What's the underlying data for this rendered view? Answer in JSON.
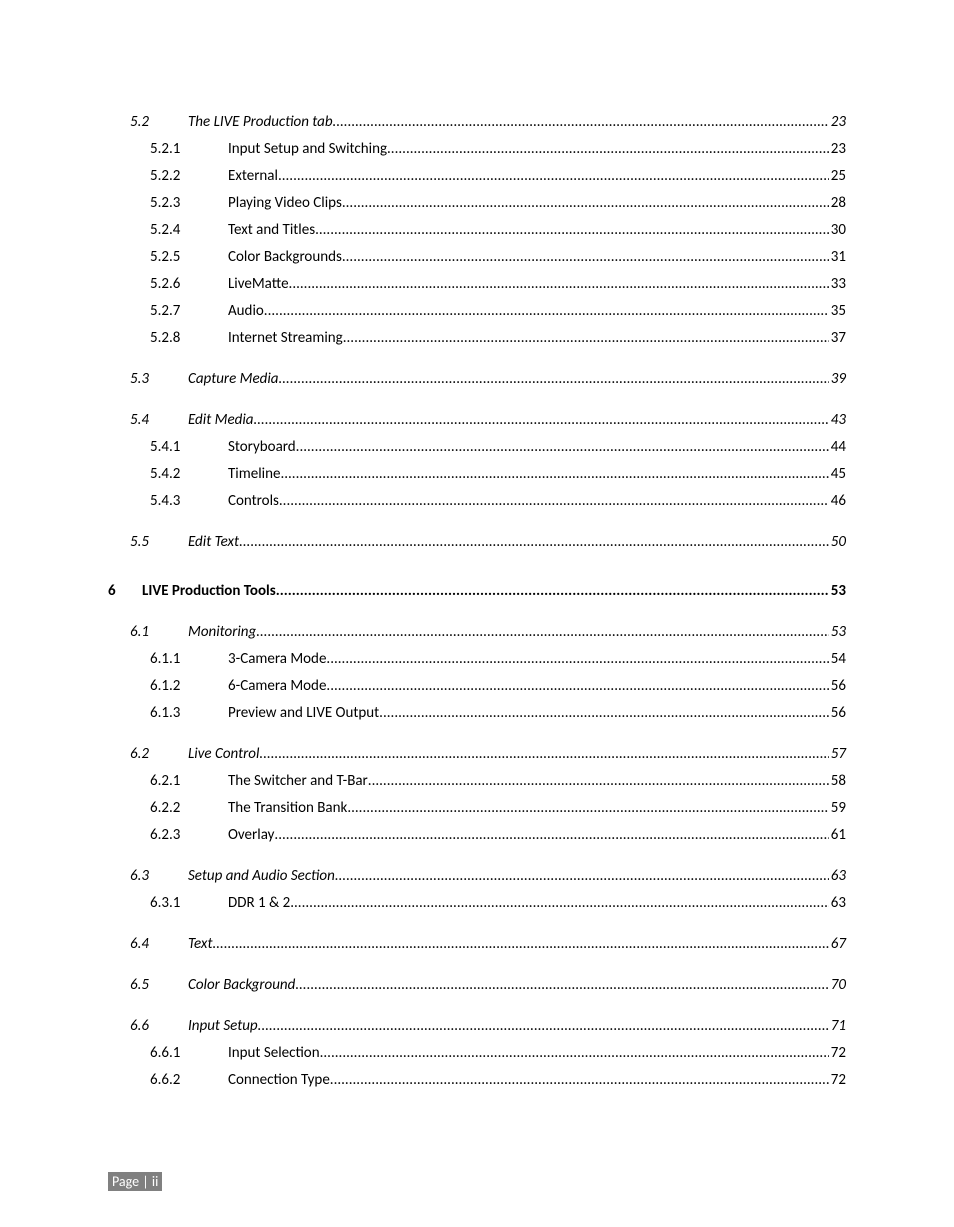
{
  "dot_char": ".",
  "footer": "Page | ii",
  "entries": [
    {
      "num": "5.2",
      "title": "The LIVE Production tab",
      "page": "23",
      "level": 1,
      "italic": true
    },
    {
      "num": "5.2.1",
      "title": "Input Setup and Switching",
      "page": "23",
      "level": 2,
      "italic": false
    },
    {
      "num": "5.2.2",
      "title": "External",
      "page": "25",
      "level": 2,
      "italic": false
    },
    {
      "num": "5.2.3",
      "title": "Playing Video Clips",
      "page": "28",
      "level": 2,
      "italic": false
    },
    {
      "num": "5.2.4",
      "title": "Text and Titles",
      "page": "30",
      "level": 2,
      "italic": false
    },
    {
      "num": "5.2.5",
      "title": "Color Backgrounds",
      "page": "31",
      "level": 2,
      "italic": false
    },
    {
      "num": "5.2.6",
      "title": "LiveMatte",
      "page": "33",
      "level": 2,
      "italic": false
    },
    {
      "num": "5.2.7",
      "title": "Audio",
      "page": "35",
      "level": 2,
      "italic": false
    },
    {
      "num": "5.2.8",
      "title": "Internet Streaming",
      "page": "37",
      "level": 2,
      "italic": false
    },
    {
      "gap": "small"
    },
    {
      "num": "5.3",
      "title": "Capture Media",
      "page": "39",
      "level": 1,
      "italic": true
    },
    {
      "gap": "small"
    },
    {
      "num": "5.4",
      "title": "Edit Media",
      "page": "43",
      "level": 1,
      "italic": true
    },
    {
      "num": "5.4.1",
      "title": "Storyboard",
      "page": "44",
      "level": 2,
      "italic": false
    },
    {
      "num": "5.4.2",
      "title": "Timeline",
      "page": "45",
      "level": 2,
      "italic": false
    },
    {
      "num": "5.4.3",
      "title": "Controls",
      "page": "46",
      "level": 2,
      "italic": false
    },
    {
      "gap": "small"
    },
    {
      "num": "5.5",
      "title": "Edit Text",
      "page": "50",
      "level": 1,
      "italic": true
    },
    {
      "gap": "big"
    },
    {
      "num": "6",
      "title": "LIVE Production Tools",
      "page": "53",
      "level": 0,
      "italic": false,
      "bold": true
    },
    {
      "gap": "small"
    },
    {
      "num": "6.1",
      "title": "Monitoring",
      "page": "53",
      "level": 1,
      "italic": true
    },
    {
      "num": "6.1.1",
      "title": "3-Camera Mode",
      "page": "54",
      "level": 2,
      "italic": false
    },
    {
      "num": "6.1.2",
      "title": "6-Camera Mode",
      "page": "56",
      "level": 2,
      "italic": false
    },
    {
      "num": "6.1.3",
      "title": "Preview and LIVE Output",
      "page": "56",
      "level": 2,
      "italic": false
    },
    {
      "gap": "small"
    },
    {
      "num": "6.2",
      "title": "Live Control",
      "page": "57",
      "level": 1,
      "italic": true
    },
    {
      "num": "6.2.1",
      "title": "The Switcher and T-Bar",
      "page": "58",
      "level": 2,
      "italic": false
    },
    {
      "num": "6.2.2",
      "title": "The Transition Bank",
      "page": "59",
      "level": 2,
      "italic": false
    },
    {
      "num": "6.2.3",
      "title": "Overlay",
      "page": "61",
      "level": 2,
      "italic": false
    },
    {
      "gap": "small"
    },
    {
      "num": "6.3",
      "title": "Setup and Audio Section",
      "page": "63",
      "level": 1,
      "italic": true
    },
    {
      "num": "6.3.1",
      "title": "DDR 1 & 2",
      "page": "63",
      "level": 2,
      "italic": false
    },
    {
      "gap": "small"
    },
    {
      "num": "6.4",
      "title": "Text",
      "page": "67",
      "level": 1,
      "italic": true
    },
    {
      "gap": "small"
    },
    {
      "num": "6.5",
      "title": "Color Background",
      "page": "70",
      "level": 1,
      "italic": true
    },
    {
      "gap": "small"
    },
    {
      "num": "6.6",
      "title": "Input Setup",
      "page": "71",
      "level": 1,
      "italic": true
    },
    {
      "num": "6.6.1",
      "title": "Input Selection",
      "page": "72",
      "level": 2,
      "italic": false
    },
    {
      "num": "6.6.2",
      "title": "Connection Type",
      "page": "72",
      "level": 2,
      "italic": false
    }
  ]
}
